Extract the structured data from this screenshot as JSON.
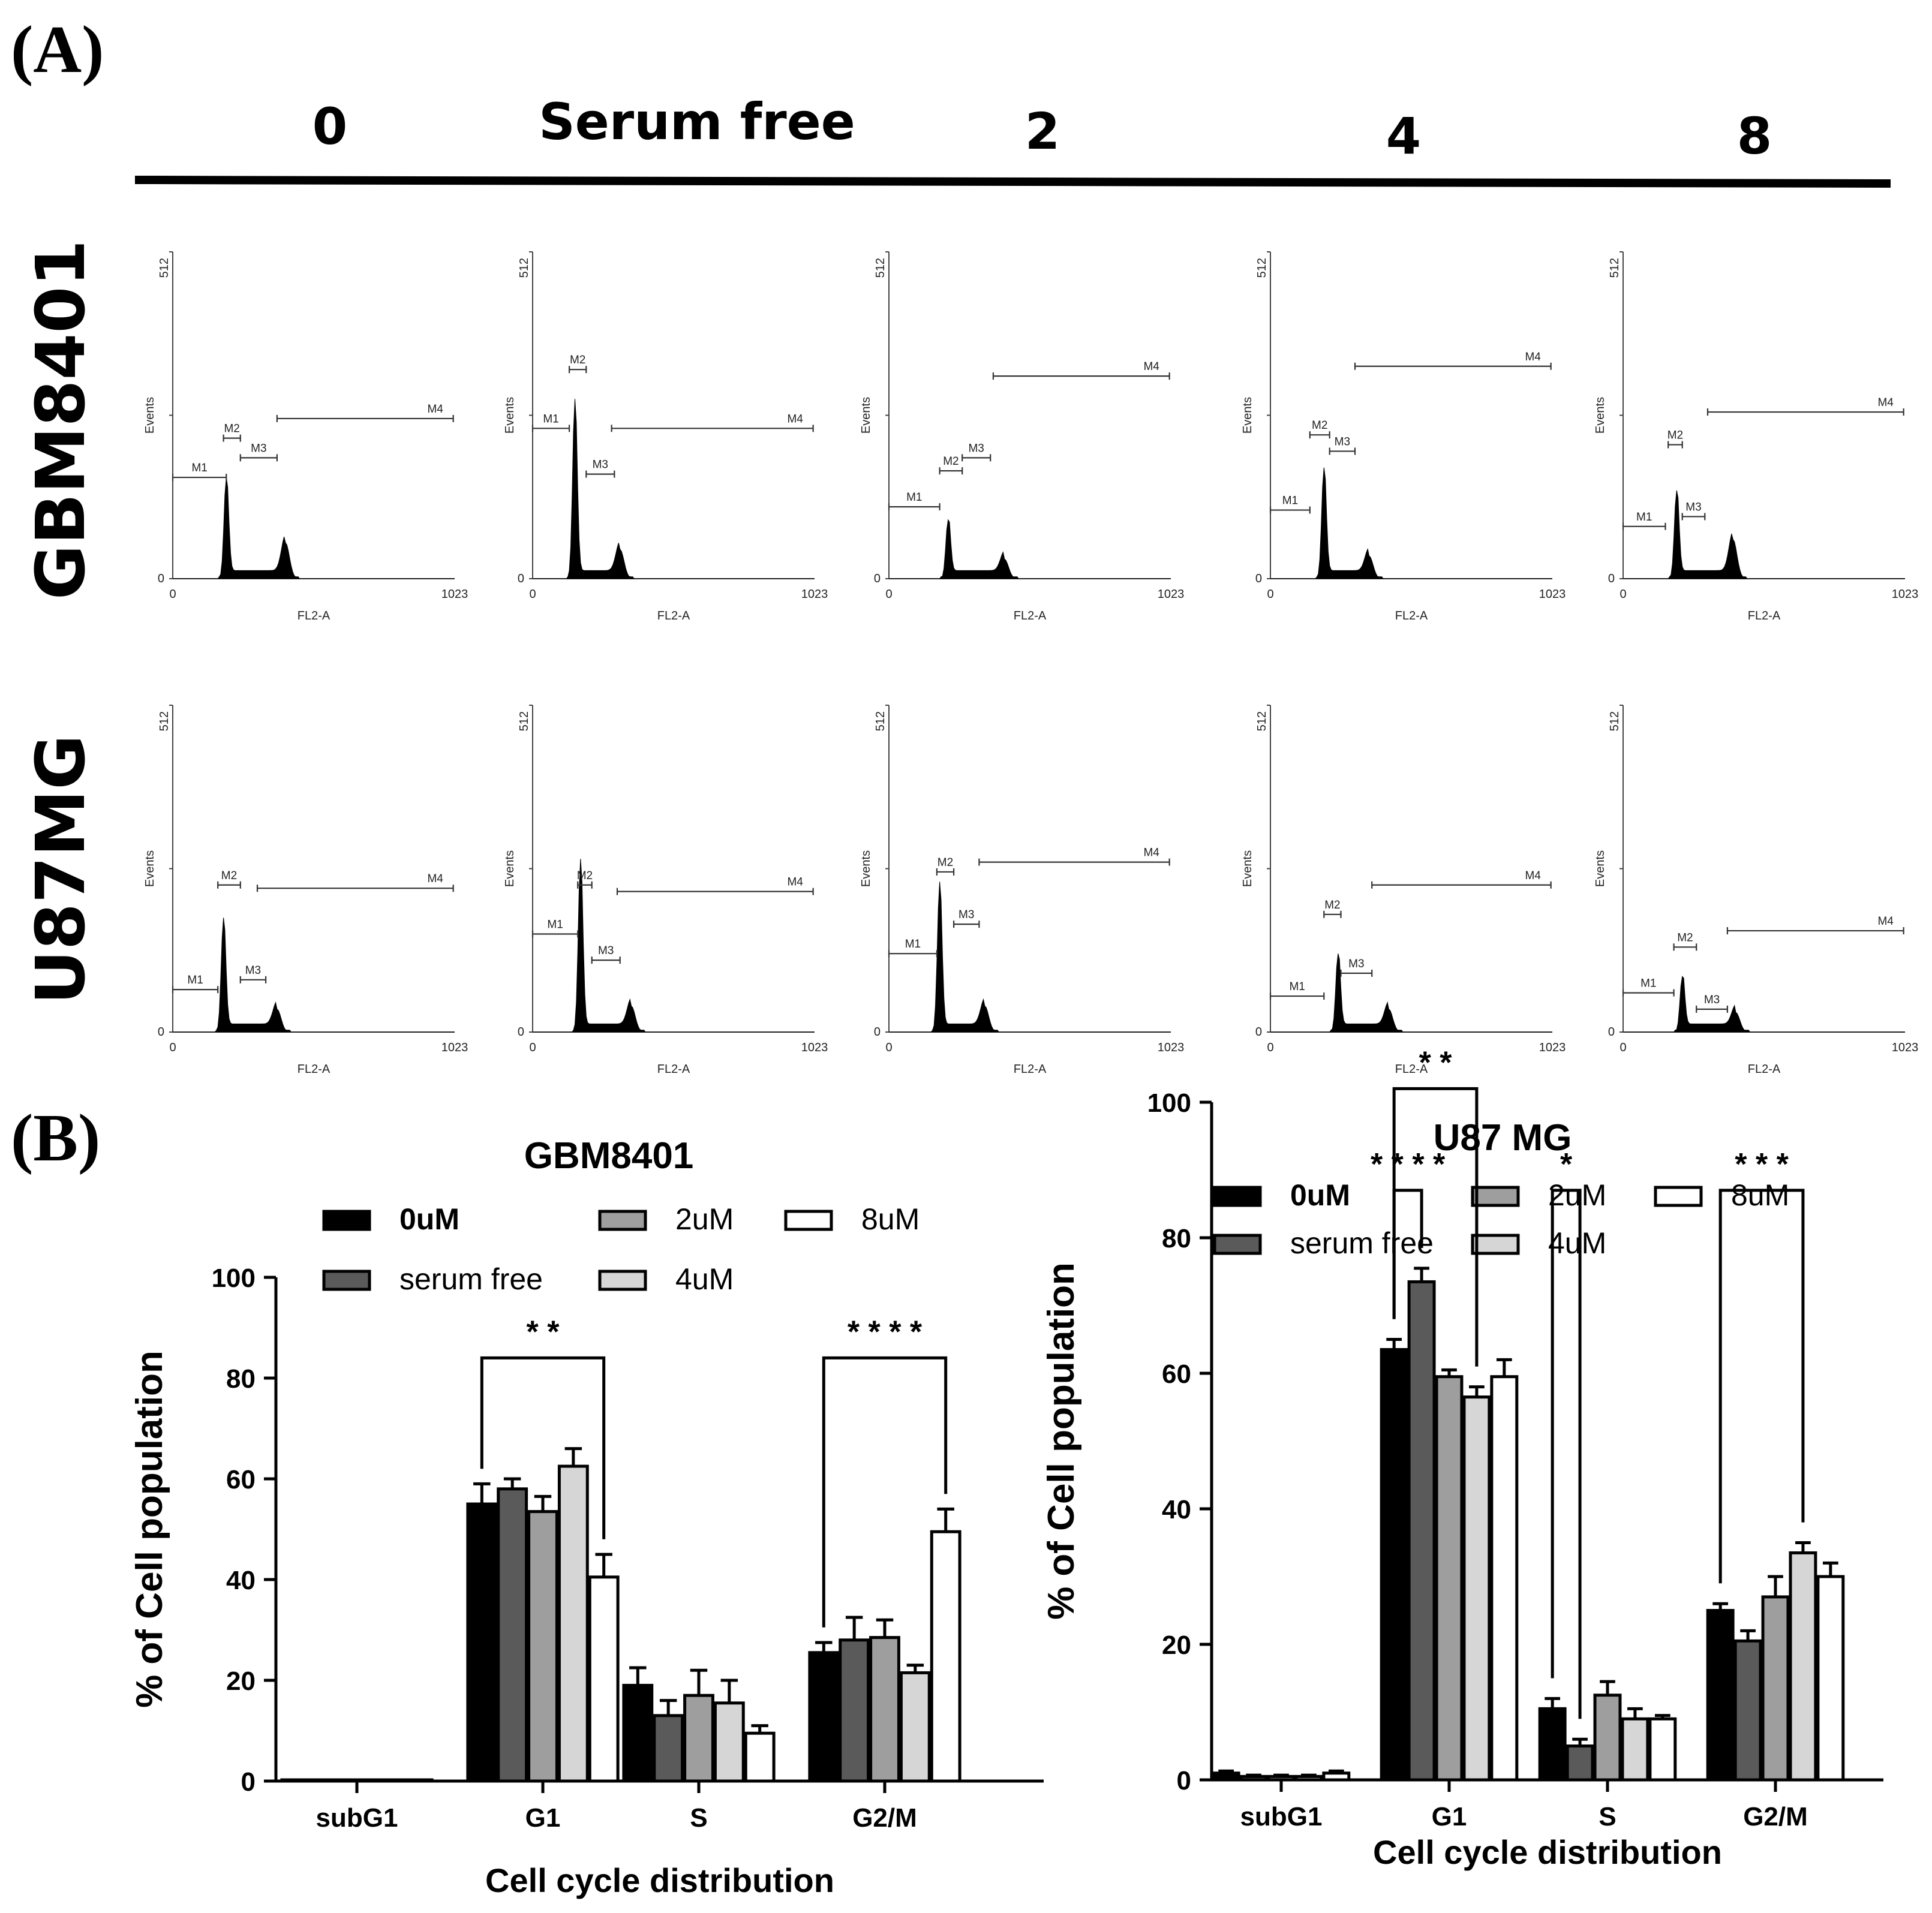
{
  "figure": {
    "panel_a_label": "(A)",
    "panel_b_label": "(B)"
  },
  "flow": {
    "columns": [
      "0",
      "Serum free",
      "2",
      "4",
      "8"
    ],
    "rows": [
      "GBM8401",
      "U87MG"
    ],
    "y_axis_label": "Events",
    "x_axis_label": "FL2-A",
    "y_max_label": "512",
    "y_min_label": "0",
    "x_min_label": "0",
    "x_max_label": "1023",
    "markers": [
      "M1",
      "M2",
      "M3",
      "M4"
    ]
  },
  "chart_data": [
    {
      "type": "bar",
      "title": "GBM8401",
      "xlabel": "Cell cycle distribution",
      "ylabel": "% of Cell population",
      "categories": [
        "subG1",
        "G1",
        "S",
        "G2/M"
      ],
      "ylim": [
        0,
        100
      ],
      "yticks": [
        0,
        20,
        40,
        60,
        80,
        100
      ],
      "legend": {
        "placement": "top",
        "labels": [
          "0uM",
          "serum free",
          "2uM",
          "4uM",
          "8uM"
        ]
      },
      "series": [
        {
          "name": "0uM",
          "color": "#000000",
          "values": [
            0,
            55,
            19,
            25.5
          ],
          "errors": [
            0,
            4,
            3.5,
            2
          ]
        },
        {
          "name": "serum free",
          "color": "#5a5a5a",
          "values": [
            0,
            58,
            13,
            28
          ],
          "errors": [
            0,
            2,
            3,
            4.5
          ]
        },
        {
          "name": "2uM",
          "color": "#9e9e9e",
          "values": [
            0,
            53.5,
            17,
            28.5
          ],
          "errors": [
            0,
            3,
            5,
            3.5
          ]
        },
        {
          "name": "4uM",
          "color": "#d6d6d6",
          "values": [
            0,
            62.5,
            15.5,
            21.5
          ],
          "errors": [
            0,
            3.5,
            4.5,
            1.5
          ]
        },
        {
          "name": "8uM",
          "color": "#ffffff",
          "values": [
            0,
            40.5,
            9.5,
            49.5
          ],
          "errors": [
            0,
            4.5,
            1.5,
            4.5
          ]
        }
      ],
      "significance": [
        {
          "category": "G1",
          "from": "0uM",
          "to": "8uM",
          "stars": "* *",
          "bracket_y": 84
        },
        {
          "category": "G2/M",
          "from": "0uM",
          "to": "8uM",
          "stars": "* * * *",
          "bracket_y": 84
        }
      ]
    },
    {
      "type": "bar",
      "title": "U87 MG",
      "xlabel": "Cell cycle distribution",
      "ylabel": "% of Cell population",
      "categories": [
        "subG1",
        "G1",
        "S",
        "G2/M"
      ],
      "ylim": [
        0,
        100
      ],
      "yticks": [
        0,
        20,
        40,
        60,
        80,
        100
      ],
      "legend": {
        "placement": "top",
        "labels": [
          "0uM",
          "serum free",
          "2uM",
          "4uM",
          "8uM"
        ]
      },
      "series": [
        {
          "name": "0uM",
          "color": "#000000",
          "values": [
            1,
            63.5,
            10.5,
            25
          ],
          "errors": [
            0.3,
            1.5,
            1.5,
            1
          ]
        },
        {
          "name": "serum free",
          "color": "#5a5a5a",
          "values": [
            0.5,
            73.5,
            5,
            20.5
          ],
          "errors": [
            0.2,
            2,
            1,
            1.5
          ]
        },
        {
          "name": "2uM",
          "color": "#9e9e9e",
          "values": [
            0.5,
            59.5,
            12.5,
            27
          ],
          "errors": [
            0.2,
            1,
            2,
            3
          ]
        },
        {
          "name": "4uM",
          "color": "#d6d6d6",
          "values": [
            0.5,
            56.5,
            9,
            33.5
          ],
          "errors": [
            0.2,
            1.5,
            1.5,
            1.5
          ]
        },
        {
          "name": "8uM",
          "color": "#ffffff",
          "values": [
            1,
            59.5,
            9,
            30
          ],
          "errors": [
            0.3,
            2.5,
            0.5,
            2
          ]
        }
      ],
      "significance": [
        {
          "category": "G1",
          "from": "0uM",
          "to": "serum free",
          "stars": "* * * *",
          "bracket_y": 87
        },
        {
          "category": "G1",
          "from": "0uM",
          "to": "4uM",
          "stars": "* *",
          "bracket_y": 102
        },
        {
          "category": "S",
          "from": "0uM",
          "to": "serum free",
          "stars": "*",
          "bracket_y": 87
        },
        {
          "category": "G2/M",
          "from": "0uM",
          "to": "4uM",
          "stars": "* * *",
          "bracket_y": 87
        }
      ]
    }
  ]
}
